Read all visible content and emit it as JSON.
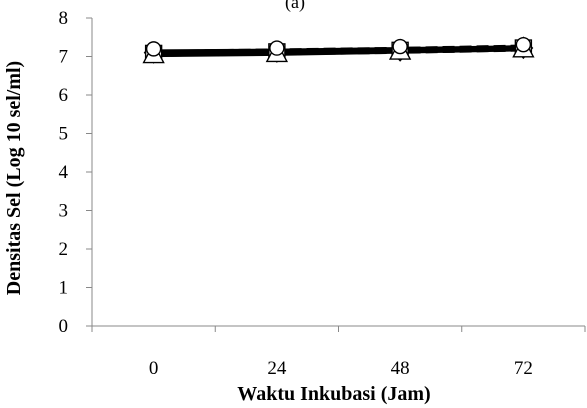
{
  "chart_data": {
    "type": "line",
    "title": "(a)",
    "xlabel": "Waktu Inkubasi (Jam)",
    "ylabel": "Densitas Sel (Log 10 sel/ml)",
    "x": [
      0,
      24,
      48,
      72
    ],
    "xticks": [
      "0",
      "24",
      "48",
      "72"
    ],
    "yticks": [
      "0",
      "1",
      "2",
      "3",
      "4",
      "5",
      "6",
      "7",
      "8"
    ],
    "ylim": [
      0,
      8
    ],
    "grid": false,
    "legend": "none",
    "series": [
      {
        "marker": "diamond",
        "style": "solid",
        "values": [
          7.1,
          7.12,
          7.15,
          7.22
        ],
        "color": "#000000"
      },
      {
        "marker": "square",
        "style": "dashed",
        "values": [
          7.08,
          7.12,
          7.16,
          7.22
        ],
        "color": "#000000"
      },
      {
        "marker": "triangle",
        "style": "solid",
        "values": [
          7.05,
          7.08,
          7.14,
          7.2
        ],
        "color": "#000000"
      },
      {
        "marker": "circle",
        "style": "solid",
        "values": [
          7.12,
          7.14,
          7.18,
          7.23
        ],
        "color": "#000000"
      }
    ]
  }
}
